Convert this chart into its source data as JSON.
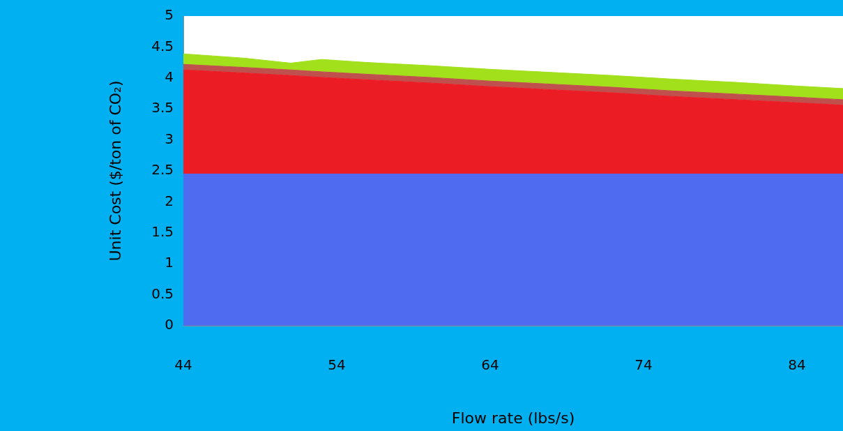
{
  "chart_data": {
    "type": "area",
    "stacked": true,
    "xlabel": "Flow rate (lbs/s)",
    "ylabel": "Unit Cost ($/ton of CO₂)",
    "x": [
      44,
      48,
      51,
      53,
      56,
      60,
      64,
      68,
      72,
      76,
      80,
      84,
      87
    ],
    "series": [
      {
        "color": "#4f6bef",
        "values": [
          2.45,
          2.45,
          2.45,
          2.45,
          2.45,
          2.45,
          2.45,
          2.45,
          2.45,
          2.45,
          2.45,
          2.45,
          2.45
        ]
      },
      {
        "color": "#eb1c24",
        "values": [
          1.68,
          1.63,
          1.59,
          1.56,
          1.52,
          1.47,
          1.41,
          1.36,
          1.31,
          1.25,
          1.2,
          1.15,
          1.11
        ]
      },
      {
        "color": "#c0504d",
        "values": [
          0.09,
          0.09,
          0.09,
          0.09,
          0.09,
          0.09,
          0.09,
          0.09,
          0.09,
          0.09,
          0.09,
          0.09,
          0.09
        ]
      },
      {
        "color": "#a2e01c",
        "values": [
          0.17,
          0.15,
          0.11,
          0.2,
          0.19,
          0.19,
          0.19,
          0.19,
          0.19,
          0.19,
          0.19,
          0.18,
          0.18
        ]
      }
    ],
    "xlim": [
      44,
      87
    ],
    "xticks": [
      44,
      54,
      64,
      74,
      84
    ],
    "ylim": [
      0,
      5
    ],
    "yticks": [
      0,
      0.5,
      1,
      1.5,
      2,
      2.5,
      3,
      3.5,
      4,
      4.5,
      5
    ],
    "grid": false,
    "legend": false
  }
}
